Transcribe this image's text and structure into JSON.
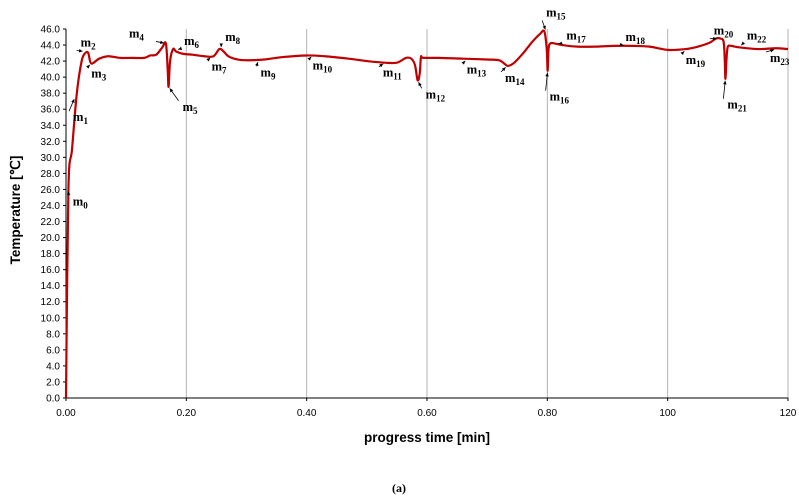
{
  "chart_data": {
    "type": "line",
    "xlabel": "progress time [min]",
    "ylabel": "Temperature [℃]",
    "panel_label": "(a)",
    "x_ticks": [
      "0.00",
      "0.20",
      "0.40",
      "0.60",
      "0.80",
      "100",
      "120"
    ],
    "x_tick_values": [
      0,
      20,
      40,
      60,
      80,
      100,
      120
    ],
    "xlim": [
      0,
      120
    ],
    "ylim": [
      0,
      46
    ],
    "y_tick_step": 2,
    "grid": "vertical",
    "series": [
      {
        "color": "#c00000",
        "x": [
          0,
          0.4,
          1,
          1.8,
          2.6,
          3.2,
          3.7,
          4.2,
          5.5,
          7,
          9,
          11,
          13,
          14,
          15,
          16,
          16.6,
          16.9,
          17.05,
          17.3,
          17.8,
          18.3,
          19.5,
          21,
          23,
          24.5,
          25.5,
          26.2,
          27,
          28.5,
          30,
          33,
          36,
          40,
          43,
          47,
          50,
          53,
          55,
          56.5,
          57.4,
          58,
          58.45,
          58.8,
          59,
          59.4,
          62,
          66,
          70,
          72,
          73,
          73.5,
          74.5,
          76,
          77.5,
          78.8,
          79.5,
          79.9,
          80.05,
          80.2,
          80.5,
          81.2,
          82.5,
          85,
          88,
          91,
          94,
          97,
          100,
          103,
          105,
          107,
          108,
          108.8,
          109.3,
          109.5,
          109.6,
          109.8,
          110,
          110.5,
          112,
          115,
          118,
          120
        ],
        "y": [
          0,
          26,
          31,
          38,
          42,
          43,
          43,
          41.7,
          42.3,
          42.6,
          42.4,
          42.4,
          42.4,
          42.7,
          42.8,
          43.7,
          44.2,
          41,
          38.8,
          42,
          43.5,
          43.2,
          42.9,
          42.8,
          42.6,
          42.6,
          43.5,
          43.2,
          42.6,
          42.2,
          42.1,
          42.2,
          42.5,
          42.7,
          42.6,
          42.3,
          42,
          41.8,
          41.8,
          42.4,
          42.3,
          41.5,
          39.6,
          40.5,
          42.5,
          42.4,
          42.4,
          42.3,
          42.2,
          42.1,
          41.6,
          41.4,
          41.8,
          43,
          44.4,
          45.4,
          45.7,
          43.5,
          40.8,
          43.5,
          44.2,
          44.2,
          44,
          43.8,
          43.8,
          43.9,
          43.9,
          43.8,
          43.4,
          43.5,
          43.8,
          44.3,
          44.8,
          44.8,
          44.4,
          42,
          39.8,
          42.5,
          43.8,
          43.9,
          43.7,
          43.5,
          43.6,
          43.5
        ]
      }
    ],
    "annotations": [
      {
        "name": "m",
        "sub": "0",
        "x": 0.3,
        "y": 26
      },
      {
        "name": "m",
        "sub": "1",
        "x": 1.5,
        "y": 37.5
      },
      {
        "name": "m",
        "sub": "2",
        "x": 3.1,
        "y": 43.2
      },
      {
        "name": "m",
        "sub": "3",
        "x": 4.2,
        "y": 41.7
      },
      {
        "name": "m",
        "sub": "4",
        "x": 16.6,
        "y": 44.2
      },
      {
        "name": "m",
        "sub": "5",
        "x": 17.05,
        "y": 38.8
      },
      {
        "name": "m",
        "sub": "6",
        "x": 18.3,
        "y": 43.4
      },
      {
        "name": "m",
        "sub": "7",
        "x": 24.2,
        "y": 42.6
      },
      {
        "name": "m",
        "sub": "8",
        "x": 25.8,
        "y": 43.5
      },
      {
        "name": "m",
        "sub": "9",
        "x": 32,
        "y": 42.1
      },
      {
        "name": "m",
        "sub": "10",
        "x": 41,
        "y": 42.7
      },
      {
        "name": "m",
        "sub": "11",
        "x": 53,
        "y": 41.8
      },
      {
        "name": "m",
        "sub": "12",
        "x": 58.45,
        "y": 39.6
      },
      {
        "name": "m",
        "sub": "13",
        "x": 66.6,
        "y": 42.2
      },
      {
        "name": "m",
        "sub": "14",
        "x": 73.3,
        "y": 41.4
      },
      {
        "name": "m",
        "sub": "15",
        "x": 79.8,
        "y": 45.7
      },
      {
        "name": "m",
        "sub": "16",
        "x": 80.05,
        "y": 40.8
      },
      {
        "name": "m",
        "sub": "17",
        "x": 81.5,
        "y": 44.2
      },
      {
        "name": "m",
        "sub": "18",
        "x": 93,
        "y": 43.9
      },
      {
        "name": "m",
        "sub": "19",
        "x": 103,
        "y": 43.4
      },
      {
        "name": "m",
        "sub": "20",
        "x": 108.5,
        "y": 44.8
      },
      {
        "name": "m",
        "sub": "21",
        "x": 109.6,
        "y": 39.8
      },
      {
        "name": "m",
        "sub": "22",
        "x": 112,
        "y": 43.8
      },
      {
        "name": "m",
        "sub": "23",
        "x": 118,
        "y": 43.5
      }
    ]
  }
}
